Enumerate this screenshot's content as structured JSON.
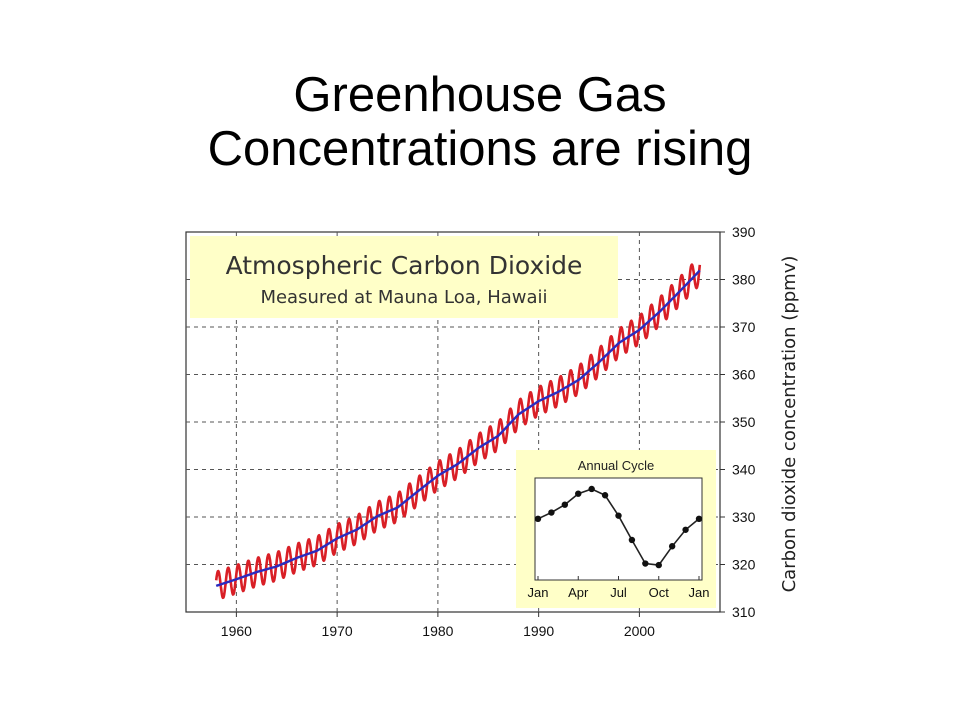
{
  "slide": {
    "title_line1": "Greenhouse Gas",
    "title_line2": "Concentrations are rising"
  },
  "colors": {
    "monthly_line": "#d91f26",
    "trend_line": "#2b2bbf",
    "label_box": "#ffffc8",
    "grid": "#555555"
  },
  "chart_data": [
    {
      "type": "line",
      "title": "Atmospheric Carbon Dioxide",
      "subtitle": "Measured at Mauna Loa, Hawaii",
      "xlabel": "",
      "ylabel": "Carbon dioxide concentration (ppmv)",
      "xlim": [
        1955,
        2008
      ],
      "ylim": [
        310,
        390
      ],
      "x_ticks": [
        1960,
        1970,
        1980,
        1990,
        2000
      ],
      "y_ticks": [
        310,
        320,
        330,
        340,
        350,
        360,
        370,
        380,
        390
      ],
      "grid": true,
      "y_axis_side": "right",
      "seasonal_amplitude_ppmv": 3,
      "series": [
        {
          "x": [
            1958,
            1960,
            1962,
            1964,
            1966,
            1968,
            1970,
            1972,
            1974,
            1976,
            1978,
            1980,
            1982,
            1984,
            1986,
            1988,
            1990,
            1992,
            1994,
            1996,
            1998,
            2000,
            2002,
            2004,
            2006
          ],
          "values": [
            315.5,
            316.9,
            318.4,
            319.6,
            321.4,
            322.9,
            325.5,
            327.4,
            330.2,
            332.0,
            335.4,
            338.7,
            341.2,
            344.5,
            347.1,
            351.6,
            354.4,
            356.4,
            358.9,
            362.6,
            366.7,
            369.4,
            373.2,
            377.5,
            381.9
          ]
        }
      ]
    },
    {
      "type": "line",
      "title": "Annual Cycle",
      "categories": [
        "Jan",
        "Feb",
        "Mar",
        "Apr",
        "May",
        "Jun",
        "Jul",
        "Aug",
        "Sep",
        "Oct",
        "Nov",
        "Dec",
        "Jan"
      ],
      "x_tick_labels": [
        "Jan",
        "Apr",
        "Jul",
        "Oct",
        "Jan"
      ],
      "values": [
        -0.2,
        0.6,
        1.6,
        3.0,
        3.6,
        2.8,
        0.2,
        -2.9,
        -5.9,
        -6.1,
        -3.7,
        -1.6,
        -0.2
      ],
      "ylim": [
        -8,
        5
      ]
    }
  ]
}
